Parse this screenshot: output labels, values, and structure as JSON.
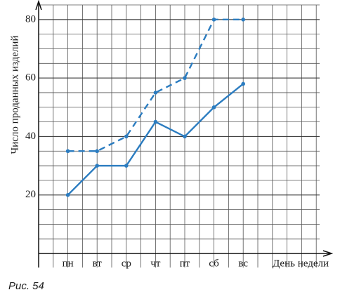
{
  "chart_data": {
    "type": "line",
    "y_label": "Число проданных изделий",
    "x_label": "День недели",
    "caption": "Рис. 54",
    "categories": [
      "пн",
      "вт",
      "ср",
      "чт",
      "пт",
      "сб",
      "вс"
    ],
    "series": [
      {
        "color": "#2b7cc0",
        "dash": false,
        "values": [
          20,
          30,
          30,
          45,
          40,
          50,
          58
        ]
      },
      {
        "color": "#2b7cc0",
        "dash": true,
        "values": [
          35,
          35,
          40,
          55,
          60,
          80,
          80
        ]
      }
    ],
    "ylim": [
      0,
      85
    ],
    "yticks": [
      20,
      40,
      60,
      80
    ],
    "grid": true
  }
}
